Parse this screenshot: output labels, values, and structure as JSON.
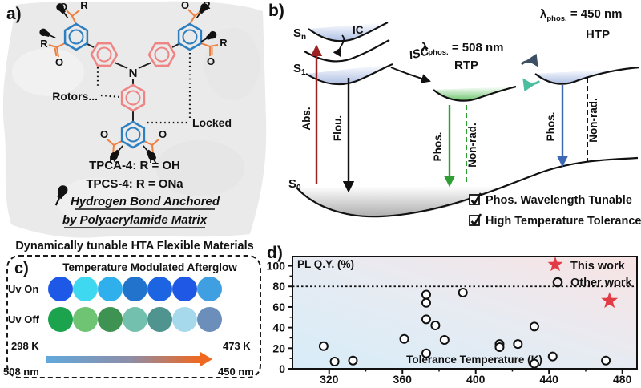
{
  "panel_a": {
    "label": "a)",
    "atoms": {
      "r": "R",
      "o": "O",
      "n": "N"
    },
    "rotors_label": "Rotors...",
    "locked_label": "Locked",
    "compound_line1": "TPCA-4: R = OH",
    "compound_line2": "TPCS-4: R = ONa",
    "anchor_line1": "Hydrogen Bond Anchored",
    "anchor_line2": "by Polyacrylamide Matrix",
    "caption": "Dynamically tunable HTA Flexible Materials",
    "colors": {
      "locked_ring": "#2e7fc0",
      "rotor_ring": "#ef8484",
      "substituent": "#ee7f3e"
    }
  },
  "panel_b": {
    "label": "b)",
    "state_sn": {
      "base": "S",
      "sub": "n"
    },
    "state_s1": {
      "base": "S",
      "sub": "1"
    },
    "state_s0": {
      "base": "S",
      "sub": "0"
    },
    "abs_label": "Abs.",
    "flou_label": "Flou.",
    "ic_label": "IC",
    "isc_label": "ISC",
    "rtp": {
      "lambda": "λ",
      "sub": "phos.",
      "eq": " = 508 nm",
      "name": "RTP",
      "phos_label": "Phos.",
      "nonrad_label": "Non-rad."
    },
    "htp": {
      "lambda": "λ",
      "sub": "phos.",
      "eq": " = 450 nm",
      "name": "HTP",
      "phos_label": "Phos.",
      "nonrad_label": "Non-rad."
    },
    "check1": "Phos. Wavelength Tunable",
    "check2": "High Temperature Tolerance",
    "colors": {
      "abs_arrow": "#9b2222",
      "flou_arrow": "#111111",
      "rtp_arrow": "#2f9e35",
      "htp_arrow": "#3c68b4",
      "cycle_dark": "#3d4f63",
      "cycle_teal": "#49bfa0"
    }
  },
  "panel_c": {
    "label": "c)",
    "title": "Temperature Modulated Afterglow",
    "uv_on_label": "Uv On",
    "uv_off_label": "Uv Off",
    "uv_on_colors": [
      "#1d59e6",
      "#3ed8f0",
      "#2fb0ec",
      "#2173cc",
      "#1d64e2",
      "#1f58e4",
      "#3f9fe0"
    ],
    "uv_off_colors": [
      "#1ba34d",
      "#6ec473",
      "#3f9352",
      "#74c0af",
      "#4f948e",
      "#a7d9ec",
      "#6b8fba"
    ],
    "temp_left": "298 K",
    "temp_right": "473 K",
    "wl_left": "508 nm",
    "wl_right": "450 nm",
    "arrow_colors": {
      "start": "#62a8dc",
      "mid": "#8e8da6",
      "end": "#f0681f"
    }
  },
  "panel_d": {
    "label": "d)"
  },
  "chart_data": {
    "type": "scatter",
    "title": "",
    "xlabel": "Tolerance Temperature (K)",
    "ylabel": "PL Q.Y. (%)",
    "xlim": [
      300,
      488
    ],
    "ylim": [
      0,
      109
    ],
    "x_ticks": [
      320,
      360,
      400,
      440,
      480
    ],
    "y_ticks": [
      0,
      20,
      40,
      60,
      80,
      100
    ],
    "x_minor_step": 20,
    "y_minor_step": 10,
    "reference_line_y": 80,
    "grid": false,
    "legend_position": "top-right",
    "background_gradient": [
      "#d7ecf8",
      "#f8e3e3"
    ],
    "legend": [
      {
        "label": "This work",
        "marker": "star",
        "color": "#e23b46"
      },
      {
        "label": "Other work",
        "marker": "open-circle",
        "color": "#111111"
      }
    ],
    "series": [
      {
        "name": "This work",
        "marker": "star",
        "color": "#e23b46",
        "points": [
          [
            473,
            66
          ]
        ]
      },
      {
        "name": "Other work",
        "marker": "open-circle",
        "color": "#111111",
        "points": [
          [
            317,
            22
          ],
          [
            323,
            7
          ],
          [
            333,
            8
          ],
          [
            361,
            29
          ],
          [
            373,
            72
          ],
          [
            373,
            64
          ],
          [
            373,
            48
          ],
          [
            378,
            42
          ],
          [
            383,
            28
          ],
          [
            373,
            15
          ],
          [
            393,
            74
          ],
          [
            413,
            24
          ],
          [
            413,
            21
          ],
          [
            423,
            24
          ],
          [
            432,
            41
          ],
          [
            432,
            5
          ],
          [
            442,
            12
          ],
          [
            471,
            8
          ]
        ]
      }
    ]
  }
}
